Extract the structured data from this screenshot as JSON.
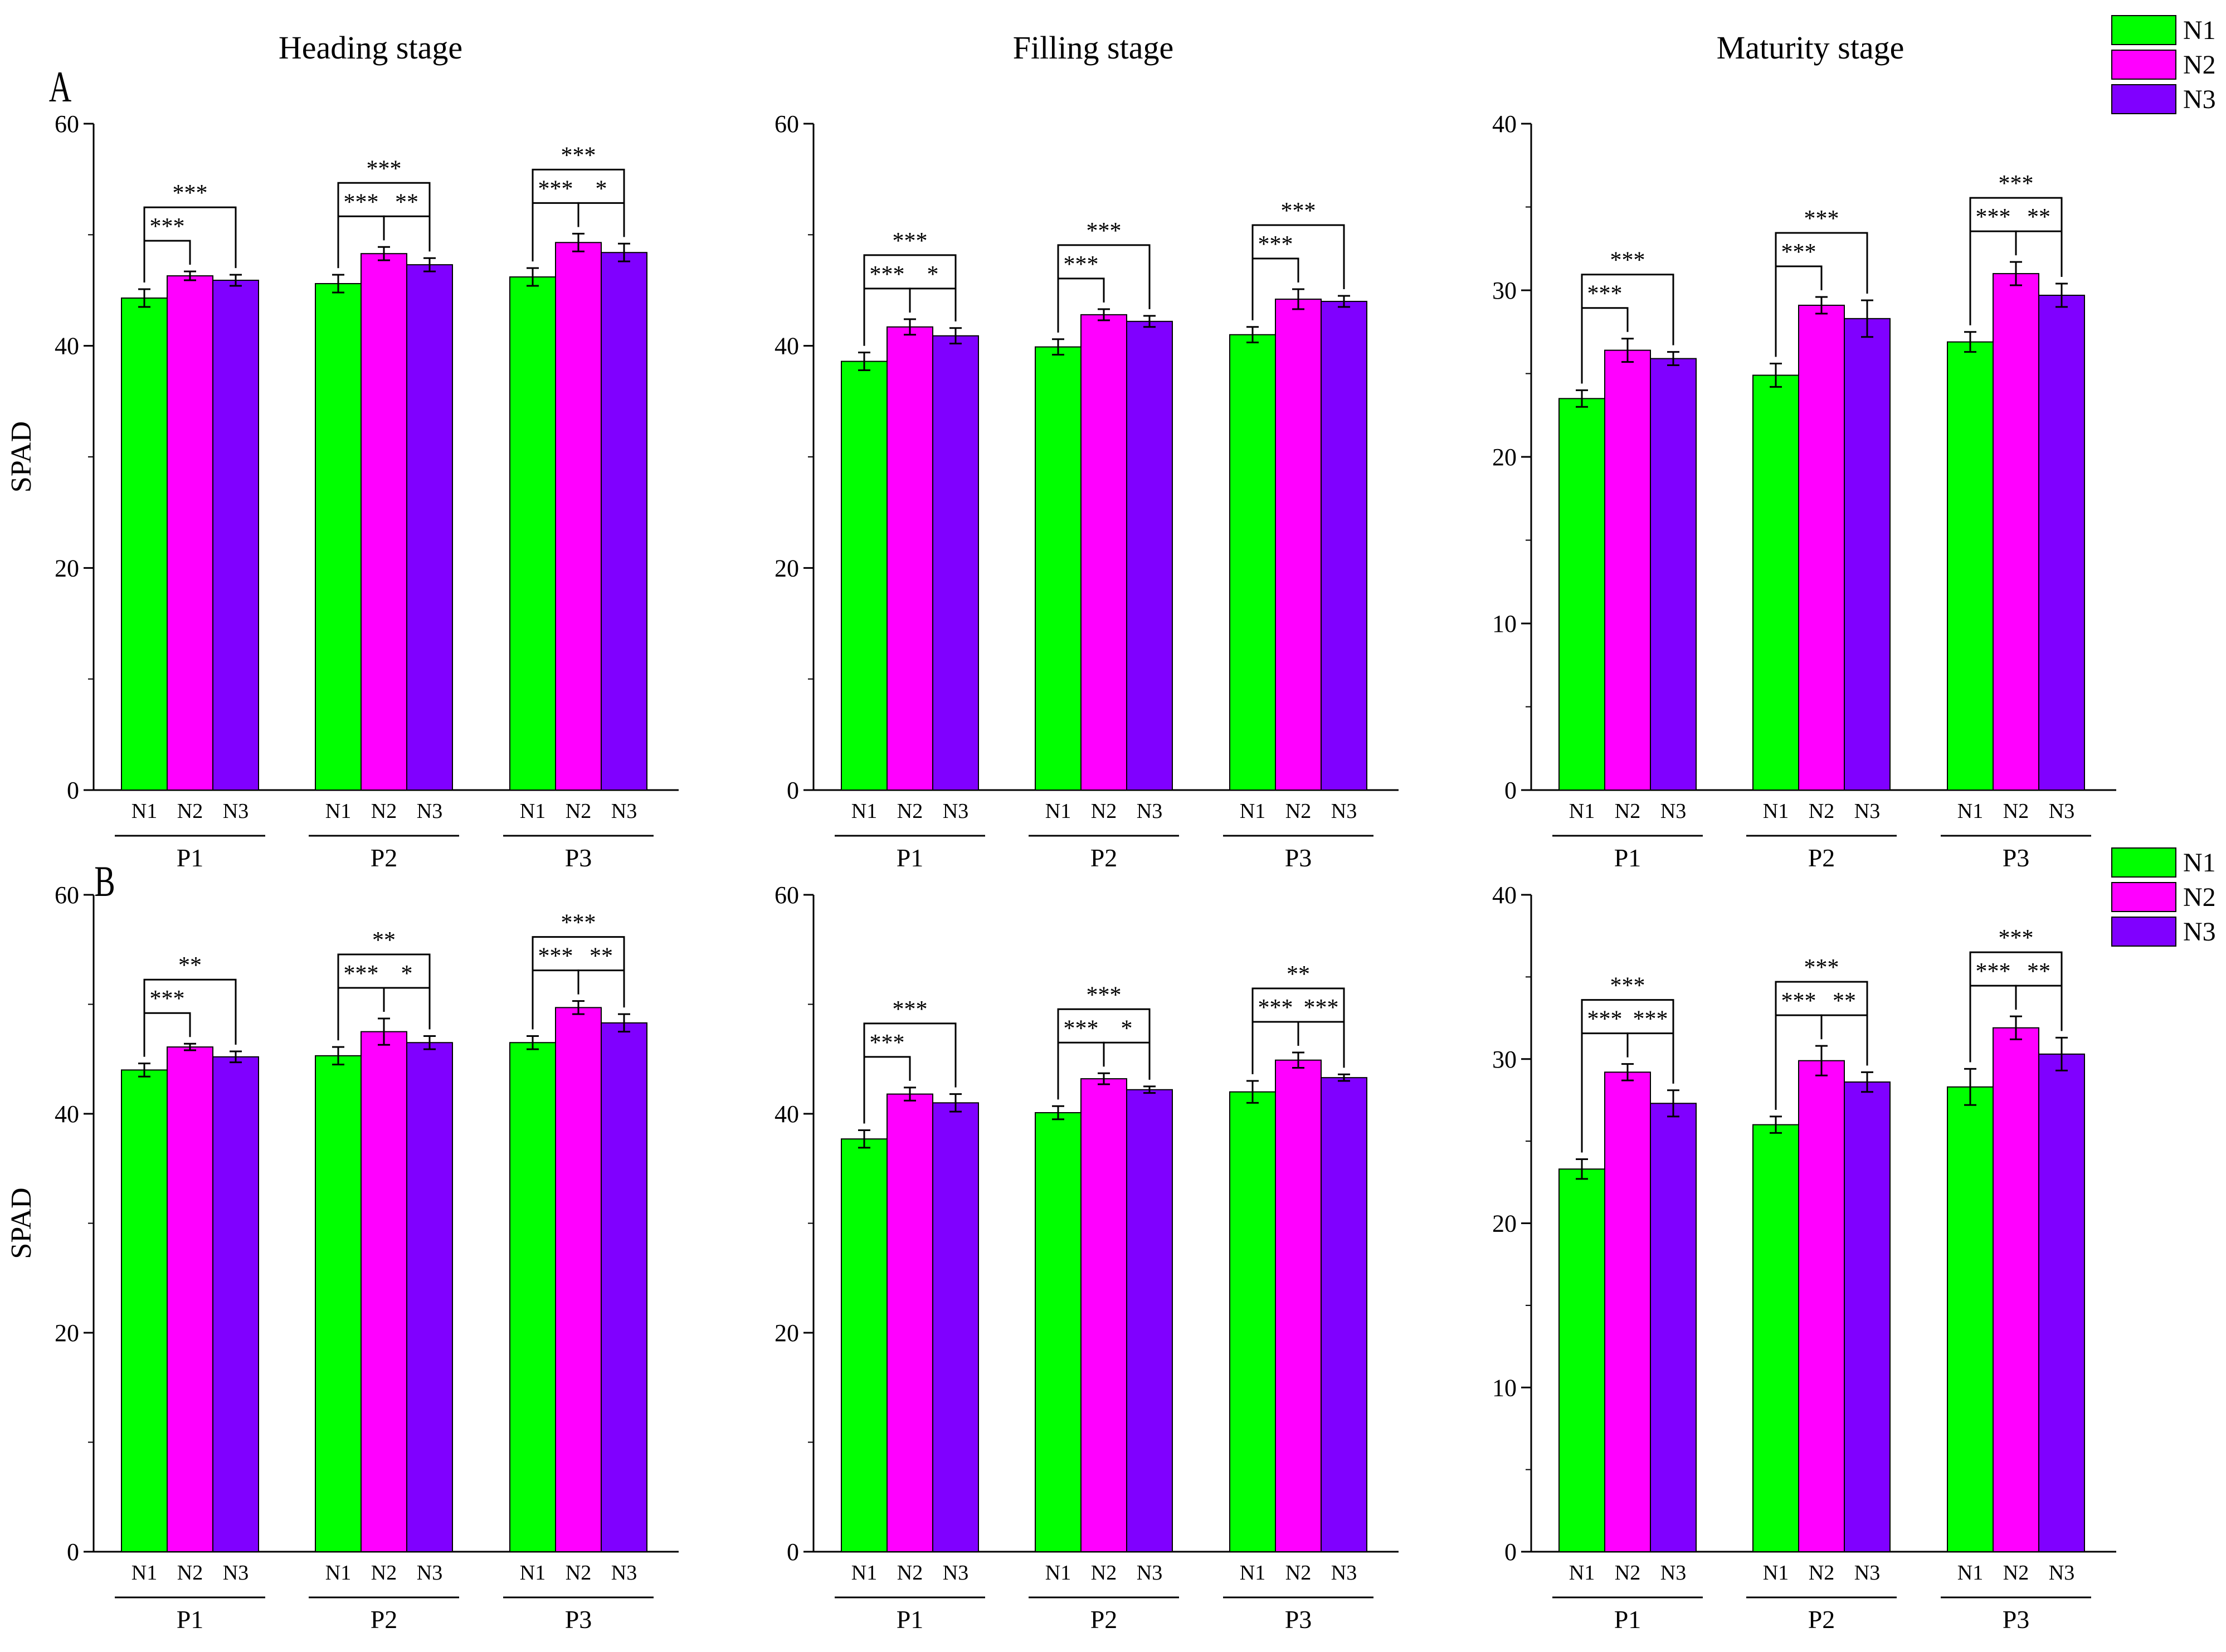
{
  "figure": {
    "row_labels": [
      "A",
      "B"
    ],
    "stage_titles": [
      "Heading stage",
      "Filling stage",
      "Maturity stage"
    ],
    "legend": [
      {
        "label": "N1",
        "color": "#00ff00"
      },
      {
        "label": "N2",
        "color": "#ff00ff"
      },
      {
        "label": "N3",
        "color": "#8000ff"
      }
    ]
  },
  "chart_data": [
    {
      "type": "bar",
      "row": "A",
      "title": "Heading stage",
      "ylabel": "SPAD",
      "xlabel": "",
      "ylim": [
        0,
        60
      ],
      "yticks": [
        0,
        20,
        40,
        60
      ],
      "groups": [
        "P1",
        "P2",
        "P3"
      ],
      "categories": [
        "N1",
        "N2",
        "N3"
      ],
      "series": [
        {
          "name": "N1",
          "values": [
            44.3,
            45.6,
            46.2
          ],
          "errors": [
            0.8,
            0.8,
            0.8
          ]
        },
        {
          "name": "N2",
          "values": [
            46.3,
            48.3,
            49.3
          ],
          "errors": [
            0.4,
            0.6,
            0.8
          ]
        },
        {
          "name": "N3",
          "values": [
            45.9,
            47.3,
            48.4
          ],
          "errors": [
            0.5,
            0.6,
            0.8
          ]
        }
      ],
      "annotations": [
        {
          "group": "P1",
          "from": "N1",
          "to": "N2",
          "label": "***",
          "level": 1
        },
        {
          "group": "P1",
          "from": "N1",
          "to": "N3",
          "label": "***",
          "level": 2
        },
        {
          "group": "P2",
          "from": "N1",
          "to": "N2",
          "label": "***",
          "level": 1
        },
        {
          "group": "P2",
          "from": "N2",
          "to": "N3",
          "label": "**",
          "level": 1
        },
        {
          "group": "P2",
          "from": "N1",
          "to": "N3",
          "label": "***",
          "level": 2
        },
        {
          "group": "P3",
          "from": "N1",
          "to": "N2",
          "label": "***",
          "level": 1
        },
        {
          "group": "P3",
          "from": "N2",
          "to": "N3",
          "label": "*",
          "level": 1
        },
        {
          "group": "P3",
          "from": "N1",
          "to": "N3",
          "label": "***",
          "level": 2
        }
      ]
    },
    {
      "type": "bar",
      "row": "A",
      "title": "Filling stage",
      "ylabel": "",
      "xlabel": "",
      "ylim": [
        0,
        60
      ],
      "yticks": [
        0,
        20,
        40,
        60
      ],
      "groups": [
        "P1",
        "P2",
        "P3"
      ],
      "categories": [
        "N1",
        "N2",
        "N3"
      ],
      "series": [
        {
          "name": "N1",
          "values": [
            38.6,
            39.9,
            41.0
          ],
          "errors": [
            0.8,
            0.7,
            0.7
          ]
        },
        {
          "name": "N2",
          "values": [
            41.7,
            42.8,
            44.2
          ],
          "errors": [
            0.7,
            0.5,
            0.9
          ]
        },
        {
          "name": "N3",
          "values": [
            40.9,
            42.2,
            44.0
          ],
          "errors": [
            0.7,
            0.5,
            0.5
          ]
        }
      ],
      "annotations": [
        {
          "group": "P1",
          "from": "N1",
          "to": "N2",
          "label": "***",
          "level": 1
        },
        {
          "group": "P1",
          "from": "N2",
          "to": "N3",
          "label": "*",
          "level": 1
        },
        {
          "group": "P1",
          "from": "N1",
          "to": "N3",
          "label": "***",
          "level": 2
        },
        {
          "group": "P2",
          "from": "N1",
          "to": "N2",
          "label": "***",
          "level": 1
        },
        {
          "group": "P2",
          "from": "N1",
          "to": "N3",
          "label": "***",
          "level": 2
        },
        {
          "group": "P3",
          "from": "N1",
          "to": "N2",
          "label": "***",
          "level": 1
        },
        {
          "group": "P3",
          "from": "N1",
          "to": "N3",
          "label": "***",
          "level": 2
        }
      ]
    },
    {
      "type": "bar",
      "row": "A",
      "title": "Maturity stage",
      "ylabel": "",
      "xlabel": "",
      "ylim": [
        0,
        40
      ],
      "yticks": [
        0,
        10,
        20,
        30,
        40
      ],
      "groups": [
        "P1",
        "P2",
        "P3"
      ],
      "categories": [
        "N1",
        "N2",
        "N3"
      ],
      "series": [
        {
          "name": "N1",
          "values": [
            23.5,
            24.9,
            26.9
          ],
          "errors": [
            0.5,
            0.7,
            0.6
          ]
        },
        {
          "name": "N2",
          "values": [
            26.4,
            29.1,
            31.0
          ],
          "errors": [
            0.7,
            0.5,
            0.7
          ]
        },
        {
          "name": "N3",
          "values": [
            25.9,
            28.3,
            29.7
          ],
          "errors": [
            0.4,
            1.1,
            0.7
          ]
        }
      ],
      "annotations": [
        {
          "group": "P1",
          "from": "N1",
          "to": "N2",
          "label": "***",
          "level": 1
        },
        {
          "group": "P1",
          "from": "N1",
          "to": "N3",
          "label": "***",
          "level": 2
        },
        {
          "group": "P2",
          "from": "N1",
          "to": "N2",
          "label": "***",
          "level": 1
        },
        {
          "group": "P2",
          "from": "N1",
          "to": "N3",
          "label": "***",
          "level": 2
        },
        {
          "group": "P3",
          "from": "N1",
          "to": "N2",
          "label": "***",
          "level": 1
        },
        {
          "group": "P3",
          "from": "N2",
          "to": "N3",
          "label": "**",
          "level": 1
        },
        {
          "group": "P3",
          "from": "N1",
          "to": "N3",
          "label": "***",
          "level": 2
        }
      ]
    },
    {
      "type": "bar",
      "row": "B",
      "title": "",
      "ylabel": "SPAD",
      "xlabel": "",
      "ylim": [
        0,
        60
      ],
      "yticks": [
        0,
        20,
        40,
        60
      ],
      "groups": [
        "P1",
        "P2",
        "P3"
      ],
      "categories": [
        "N1",
        "N2",
        "N3"
      ],
      "series": [
        {
          "name": "N1",
          "values": [
            44.0,
            45.3,
            46.5
          ],
          "errors": [
            0.6,
            0.8,
            0.6
          ]
        },
        {
          "name": "N2",
          "values": [
            46.1,
            47.5,
            49.7
          ],
          "errors": [
            0.3,
            1.2,
            0.6
          ]
        },
        {
          "name": "N3",
          "values": [
            45.2,
            46.5,
            48.3
          ],
          "errors": [
            0.5,
            0.6,
            0.8
          ]
        }
      ],
      "annotations": [
        {
          "group": "P1",
          "from": "N1",
          "to": "N2",
          "label": "***",
          "level": 1
        },
        {
          "group": "P1",
          "from": "N1",
          "to": "N3",
          "label": "**",
          "level": 2
        },
        {
          "group": "P2",
          "from": "N1",
          "to": "N2",
          "label": "***",
          "level": 1
        },
        {
          "group": "P2",
          "from": "N2",
          "to": "N3",
          "label": "*",
          "level": 1
        },
        {
          "group": "P2",
          "from": "N1",
          "to": "N3",
          "label": "**",
          "level": 2
        },
        {
          "group": "P3",
          "from": "N1",
          "to": "N2",
          "label": "***",
          "level": 1
        },
        {
          "group": "P3",
          "from": "N2",
          "to": "N3",
          "label": "**",
          "level": 1
        },
        {
          "group": "P3",
          "from": "N1",
          "to": "N3",
          "label": "***",
          "level": 2
        }
      ]
    },
    {
      "type": "bar",
      "row": "B",
      "title": "",
      "ylabel": "",
      "xlabel": "",
      "ylim": [
        0,
        60
      ],
      "yticks": [
        0,
        20,
        40,
        60
      ],
      "groups": [
        "P1",
        "P2",
        "P3"
      ],
      "categories": [
        "N1",
        "N2",
        "N3"
      ],
      "series": [
        {
          "name": "N1",
          "values": [
            37.7,
            40.1,
            42.0
          ],
          "errors": [
            0.8,
            0.6,
            1.0
          ]
        },
        {
          "name": "N2",
          "values": [
            41.8,
            43.2,
            44.9
          ],
          "errors": [
            0.6,
            0.5,
            0.7
          ]
        },
        {
          "name": "N3",
          "values": [
            41.0,
            42.2,
            43.3
          ],
          "errors": [
            0.8,
            0.3,
            0.3
          ]
        }
      ],
      "annotations": [
        {
          "group": "P1",
          "from": "N1",
          "to": "N2",
          "label": "***",
          "level": 1
        },
        {
          "group": "P1",
          "from": "N1",
          "to": "N3",
          "label": "***",
          "level": 2
        },
        {
          "group": "P2",
          "from": "N1",
          "to": "N2",
          "label": "***",
          "level": 1
        },
        {
          "group": "P2",
          "from": "N2",
          "to": "N3",
          "label": "*",
          "level": 1
        },
        {
          "group": "P2",
          "from": "N1",
          "to": "N3",
          "label": "***",
          "level": 2
        },
        {
          "group": "P3",
          "from": "N1",
          "to": "N2",
          "label": "***",
          "level": 1
        },
        {
          "group": "P3",
          "from": "N2",
          "to": "N3",
          "label": "***",
          "level": 1
        },
        {
          "group": "P3",
          "from": "N1",
          "to": "N3",
          "label": "**",
          "level": 2
        }
      ]
    },
    {
      "type": "bar",
      "row": "B",
      "title": "",
      "ylabel": "",
      "xlabel": "",
      "ylim": [
        0,
        40
      ],
      "yticks": [
        0,
        10,
        20,
        30,
        40
      ],
      "groups": [
        "P1",
        "P2",
        "P3"
      ],
      "categories": [
        "N1",
        "N2",
        "N3"
      ],
      "series": [
        {
          "name": "N1",
          "values": [
            23.3,
            26.0,
            28.3
          ],
          "errors": [
            0.6,
            0.5,
            1.1
          ]
        },
        {
          "name": "N2",
          "values": [
            29.2,
            29.9,
            31.9
          ],
          "errors": [
            0.5,
            0.9,
            0.7
          ]
        },
        {
          "name": "N3",
          "values": [
            27.3,
            28.6,
            30.3
          ],
          "errors": [
            0.8,
            0.6,
            1.0
          ]
        }
      ],
      "annotations": [
        {
          "group": "P1",
          "from": "N1",
          "to": "N2",
          "label": "***",
          "level": 1
        },
        {
          "group": "P1",
          "from": "N2",
          "to": "N3",
          "label": "***",
          "level": 1
        },
        {
          "group": "P1",
          "from": "N1",
          "to": "N3",
          "label": "***",
          "level": 2
        },
        {
          "group": "P2",
          "from": "N1",
          "to": "N2",
          "label": "***",
          "level": 1
        },
        {
          "group": "P2",
          "from": "N2",
          "to": "N3",
          "label": "**",
          "level": 1
        },
        {
          "group": "P2",
          "from": "N1",
          "to": "N3",
          "label": "***",
          "level": 2
        },
        {
          "group": "P3",
          "from": "N1",
          "to": "N2",
          "label": "***",
          "level": 1
        },
        {
          "group": "P3",
          "from": "N2",
          "to": "N3",
          "label": "**",
          "level": 1
        },
        {
          "group": "P3",
          "from": "N1",
          "to": "N3",
          "label": "***",
          "level": 2
        }
      ]
    }
  ]
}
